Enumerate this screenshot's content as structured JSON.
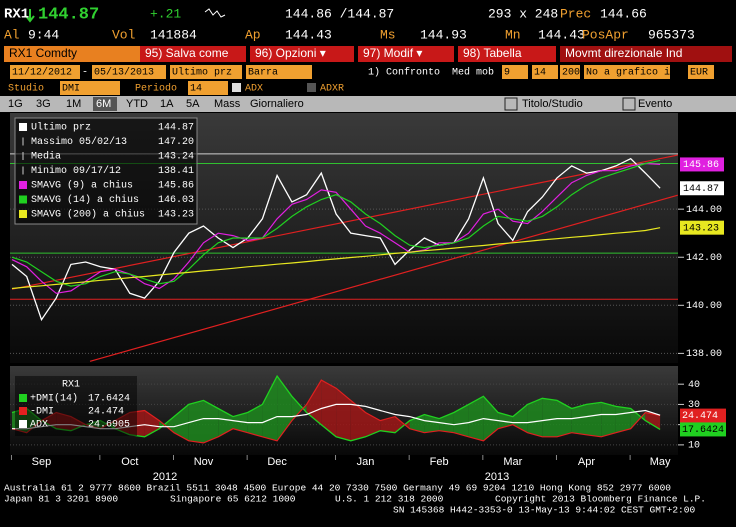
{
  "header": {
    "symbol": "RX1",
    "last": "144.87",
    "change": "+.21",
    "bid_ask": "144.86 /144.87",
    "size": "293 x 248",
    "prev_label": "Prec",
    "prev": "144.66",
    "time_label": "Al",
    "time": "9:44",
    "vol_label": "Vol",
    "vol": "141884",
    "open_label": "Ap",
    "open": "144.43",
    "high_label": "Ms",
    "high": "144.93",
    "low_label": "Mn",
    "low": "144.43",
    "oi_label": "PosApr",
    "oi": "965373"
  },
  "toolbar": [
    "RX1 Comdty",
    "95) Salva come",
    "96) Opzioni ▾",
    "97) Modif ▾",
    "98) Tabella",
    "Movmt direzionale Ind"
  ],
  "controls": [
    "11/12/2012",
    "-",
    "05/13/2013",
    "Ultimo prz",
    "Barra",
    "1) Confronto",
    "Med mob",
    "9",
    "14",
    "200",
    "No a grafico infe",
    "EUR"
  ],
  "study": [
    "Studio",
    "DMI",
    "Periodo",
    "14",
    "ADX",
    "ADXR"
  ],
  "tabs": [
    "1G",
    "3G",
    "1M",
    "6M",
    "YTD",
    "1A",
    "5A",
    "Mass",
    "Giornaliero",
    "Titolo/Studio",
    "Evento"
  ],
  "chart_data": [
    {
      "type": "line",
      "series": [
        {
          "name": "Ultimo prz",
          "color": "#ffffff",
          "values": [
            141.7,
            141.2,
            139.4,
            140.3,
            141.7,
            141.8,
            141.6,
            141.5,
            140.5,
            140.3,
            141.0,
            142.2,
            143.0,
            143.3,
            142.8,
            142.4,
            142.8,
            143.6,
            145.4,
            144.3,
            144.6,
            145.5,
            143.8,
            143.0,
            142.9,
            142.8,
            141.7,
            142.3,
            142.8,
            142.5,
            142.6,
            143.6,
            145.3,
            143.4,
            142.7,
            143.9,
            144.5,
            145.3,
            145.8,
            145.5,
            145.6,
            145.8,
            146.1,
            145.5,
            144.87
          ]
        },
        {
          "name": "SMAVG (9) a chius",
          "color": "#e020e0",
          "values": [
            141.9,
            141.6,
            141.0,
            140.5,
            140.6,
            141.0,
            141.4,
            141.5,
            141.3,
            140.9,
            140.7,
            141.1,
            141.8,
            142.6,
            143.0,
            142.9,
            142.7,
            142.8,
            143.6,
            144.2,
            144.4,
            144.8,
            144.7,
            144.0,
            143.3,
            143.0,
            142.6,
            142.2,
            142.3,
            142.6,
            142.6,
            143.0,
            143.8,
            144.0,
            143.5,
            143.4,
            143.9,
            144.5,
            145.1,
            145.4,
            145.6,
            145.6,
            145.8,
            145.9,
            145.86
          ]
        },
        {
          "name": "SMAVG (14) a chius",
          "color": "#20d020",
          "values": [
            142.0,
            141.8,
            141.4,
            141.0,
            140.8,
            140.9,
            141.2,
            141.4,
            141.3,
            141.1,
            140.9,
            141.0,
            141.5,
            142.1,
            142.6,
            142.8,
            142.8,
            142.8,
            143.2,
            143.7,
            144.1,
            144.4,
            144.6,
            144.3,
            143.8,
            143.4,
            142.9,
            142.5,
            142.4,
            142.5,
            142.6,
            142.8,
            143.3,
            143.7,
            143.6,
            143.5,
            143.7,
            144.1,
            144.6,
            145.0,
            145.3,
            145.5,
            145.7,
            145.9,
            146.03
          ]
        },
        {
          "name": "SMAVG (200) a chius",
          "color": "#e8e820",
          "values": [
            140.7,
            140.76,
            140.81,
            140.87,
            140.92,
            140.98,
            141.04,
            141.09,
            141.15,
            141.2,
            141.26,
            141.32,
            141.37,
            141.43,
            141.48,
            141.54,
            141.6,
            141.65,
            141.71,
            141.76,
            141.82,
            141.88,
            141.93,
            141.99,
            142.04,
            142.1,
            142.16,
            142.21,
            142.27,
            142.32,
            142.38,
            142.44,
            142.49,
            142.55,
            142.6,
            142.66,
            142.72,
            142.77,
            142.83,
            142.88,
            142.94,
            143.0,
            143.05,
            143.11,
            143.23
          ]
        }
      ],
      "stats": [
        {
          "label": "Massimo 05/02/13",
          "value": "147.20"
        },
        {
          "label": "Media",
          "value": "143.24"
        },
        {
          "label": "Minimo 09/17/12",
          "value": "138.41"
        }
      ],
      "ylim": [
        137.6,
        148.0
      ],
      "yticks": [
        {
          "value": 138,
          "label": "138.00"
        },
        {
          "value": 140,
          "label": "140.00"
        },
        {
          "value": 142,
          "label": "142.00"
        },
        {
          "value": 144,
          "label": "144.00"
        }
      ],
      "hlines": [
        {
          "value": 146.3,
          "color": "#d0d0d0"
        },
        {
          "value": 145.9,
          "color": "#30c030"
        },
        {
          "value": 142.17,
          "color": "#30c030"
        },
        {
          "value": 140.25,
          "color": "#e02020"
        }
      ],
      "trendlines": [
        {
          "from": [
            5.3,
            137.67
          ],
          "to": [
            45.2,
            144.58
          ],
          "color": "#e02020"
        },
        {
          "from": [
            0,
            140.67
          ],
          "to": [
            45.2,
            146.25
          ],
          "color": "#e02020"
        }
      ]
    },
    {
      "type": "line",
      "title": "RX1",
      "categories": [
        null,
        null,
        "Sep",
        null,
        null,
        null,
        null,
        null,
        "Oct",
        null,
        null,
        null,
        null,
        "Nov",
        null,
        null,
        null,
        null,
        "Dec",
        null,
        null,
        null,
        null,
        null,
        "Jan",
        null,
        null,
        null,
        null,
        "Feb",
        null,
        null,
        null,
        null,
        "Mar",
        null,
        null,
        null,
        null,
        "Apr",
        null,
        null,
        null,
        null,
        "May"
      ],
      "years": [
        "2012",
        "2013"
      ],
      "series": [
        {
          "name": "+DMI(14)",
          "color": "#20d020",
          "values": [
            26,
            28,
            22,
            18,
            17,
            20,
            22,
            18,
            15,
            14,
            18,
            24,
            30,
            32,
            28,
            24,
            26,
            30,
            44,
            34,
            26,
            20,
            14,
            12,
            14,
            17,
            16,
            22,
            25,
            23,
            26,
            30,
            34,
            26,
            24,
            30,
            33,
            32,
            28,
            30,
            31,
            29,
            28,
            22,
            17.6424
          ]
        },
        {
          "name": "-DMI",
          "color": "#e02020",
          "values": [
            18,
            16,
            22,
            26,
            24,
            20,
            18,
            22,
            26,
            27,
            22,
            16,
            12,
            11,
            14,
            18,
            16,
            14,
            12,
            22,
            30,
            42,
            38,
            32,
            26,
            22,
            24,
            18,
            16,
            17,
            16,
            14,
            12,
            18,
            20,
            16,
            14,
            14,
            16,
            15,
            14,
            16,
            18,
            26,
            24.474
          ]
        },
        {
          "name": "ADX",
          "color": "#ffffff",
          "values": [
            18,
            18,
            19,
            20,
            20,
            19,
            18,
            18,
            19,
            20,
            19,
            19,
            21,
            23,
            23,
            22,
            21,
            21,
            24,
            24,
            25,
            28,
            30,
            30,
            29,
            27,
            25,
            24,
            22,
            21,
            20,
            21,
            23,
            22,
            21,
            21,
            22,
            23,
            23,
            24,
            25,
            25,
            26,
            27,
            24.6905
          ]
        }
      ],
      "ylim": [
        5,
        48
      ],
      "yticks": [
        10,
        20,
        30,
        40
      ]
    }
  ],
  "footer": [
    "Australia 61 2 9777 8600 Brazil 5511 3048 4500 Europe 44 20 7330 7500 Germany 49 69 9204 1210 Hong Kong 852 2977 6000",
    "Japan 81 3 3201 8900",
    "Singapore 65 6212 1000",
    "U.S. 1 212 318 2000",
    "Copyright 2013 Bloomberg Finance L.P.",
    "SN 145368 H442-3353-0 13-May-13  9:44:02 CEST GMT+2:00"
  ]
}
